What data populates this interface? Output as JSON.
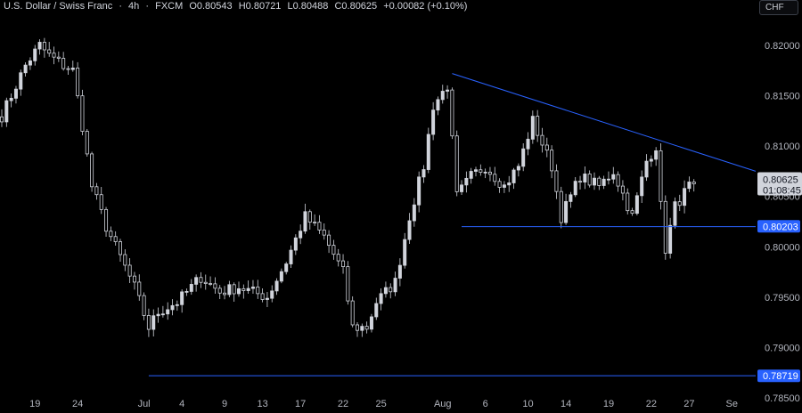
{
  "header": {
    "symbol": "U.S. Dollar / Swiss Franc",
    "sep1": "·",
    "interval": "4h",
    "sep2": "·",
    "source": "FXCM",
    "open": "O0.80543",
    "high": "H0.80721",
    "low": "L0.80488",
    "close": "C0.80625",
    "change": "+0.00082 (+0.10%)"
  },
  "currency_button": "CHF",
  "chart_data": {
    "type": "candlestick",
    "y_ticks": [
      "0.82000",
      "0.81500",
      "0.81000",
      "0.80500",
      "0.80000",
      "0.79500",
      "0.79000",
      "0.78500"
    ],
    "y_tick_values": [
      0.82,
      0.815,
      0.81,
      0.805,
      0.8,
      0.795,
      0.79,
      0.785
    ],
    "ylim": [
      0.7835,
      0.8245
    ],
    "x_ticks": [
      "19",
      "24",
      "Jul",
      "4",
      "9",
      "13",
      "17",
      "22",
      "25",
      "Aug",
      "6",
      "10",
      "14",
      "19",
      "22",
      "27",
      "Se"
    ],
    "x_tick_bars": [
      7,
      16,
      30,
      38,
      47,
      55,
      63,
      72,
      80,
      93,
      102,
      111,
      119,
      128,
      137,
      145,
      154
    ],
    "price_path": [
      [
        0,
        0.813
      ],
      [
        5,
        0.818
      ],
      [
        8,
        0.82
      ],
      [
        10,
        0.819
      ],
      [
        13,
        0.818
      ],
      [
        15,
        0.8175
      ],
      [
        17,
        0.812
      ],
      [
        19,
        0.806
      ],
      [
        22,
        0.802
      ],
      [
        25,
        0.799
      ],
      [
        28,
        0.796
      ],
      [
        31,
        0.792
      ],
      [
        33,
        0.7935
      ],
      [
        37,
        0.7945
      ],
      [
        42,
        0.797
      ],
      [
        46,
        0.7955
      ],
      [
        50,
        0.796
      ],
      [
        56,
        0.795
      ],
      [
        60,
        0.7985
      ],
      [
        64,
        0.803
      ],
      [
        68,
        0.801
      ],
      [
        72,
        0.7975
      ],
      [
        74,
        0.792
      ],
      [
        77,
        0.792
      ],
      [
        79,
        0.7945
      ],
      [
        83,
        0.7965
      ],
      [
        86,
        0.803
      ],
      [
        89,
        0.808
      ],
      [
        91,
        0.814
      ],
      [
        94,
        0.816
      ],
      [
        96,
        0.805
      ],
      [
        99,
        0.807
      ],
      [
        102,
        0.808
      ],
      [
        106,
        0.806
      ],
      [
        109,
        0.808
      ],
      [
        112,
        0.8125
      ],
      [
        116,
        0.808
      ],
      [
        118,
        0.803
      ],
      [
        122,
        0.807
      ],
      [
        126,
        0.806
      ],
      [
        129,
        0.8075
      ],
      [
        133,
        0.803
      ],
      [
        136,
        0.8085
      ],
      [
        138,
        0.81
      ],
      [
        139,
        0.804
      ],
      [
        140,
        0.7998
      ],
      [
        142,
        0.804
      ],
      [
        145,
        0.806
      ],
      [
        146,
        0.80625
      ]
    ],
    "lines": {
      "upper_trend": {
        "from": [
          95,
          0.8172
        ],
        "to": [
          155,
          0.8075
        ]
      },
      "support_mid": {
        "from": [
          97,
          0.802
        ],
        "to": [
          155,
          0.802
        ]
      },
      "support_low": {
        "from": [
          31,
          0.7872
        ],
        "to": [
          155,
          0.7872
        ]
      }
    },
    "last_price": {
      "value": "0.80625",
      "countdown": "01:08:45"
    },
    "price_labels": [
      {
        "value": 0.80203,
        "text": "0.80203"
      },
      {
        "value": 0.78719,
        "text": "0.78719"
      }
    ],
    "colors": {
      "background": "#000000",
      "candle": "#d1d4dc",
      "line": "#2962ff",
      "label_bg": "#2962ff",
      "axis_text": "#b2b5be",
      "last_label_bg": "#d1d4dc"
    }
  }
}
